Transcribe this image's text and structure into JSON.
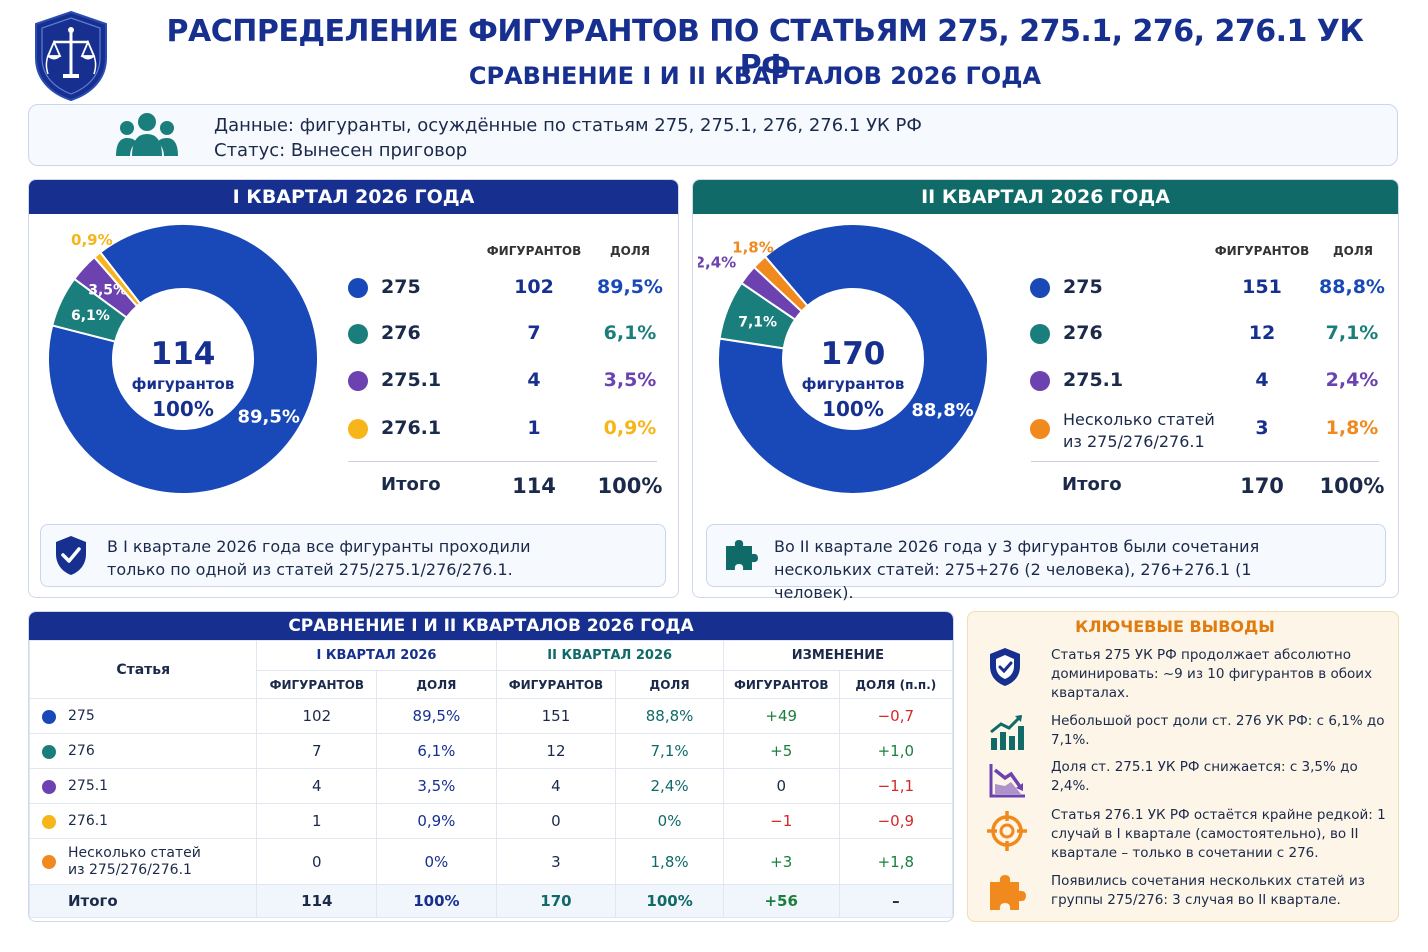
{
  "header": {
    "title": "РАСПРЕДЕЛЕНИЕ ФИГУРАНТОВ ПО СТАТЬЯМ 275, 275.1, 276, 276.1 УК РФ",
    "subtitle": "СРАВНЕНИЕ I И II КВАРТАЛОВ 2026 ГОДА"
  },
  "info": {
    "line1": "Данные: фигуранты, осуждённые по статьям 275, 275.1, 276, 276.1 УК РФ",
    "line2": "Статус: Вынесен приговор"
  },
  "colors": {
    "blue": "#1948b8",
    "teal": "#1a7f7c",
    "purple": "#6b42b0",
    "yellow": "#f6b519",
    "orange": "#f08a1e",
    "navy": "#17308f",
    "darkteal": "#0f6a68"
  },
  "q1": {
    "header": "I КВАРТАЛ 2026 ГОДА",
    "center_number": "114",
    "center_label": "фигурантов",
    "center_pct": "100%",
    "col_count": "ФИГУРАНТОВ",
    "col_share": "ДОЛЯ",
    "rows": [
      {
        "name": "275",
        "count": "102",
        "share": "89,5%"
      },
      {
        "name": "276",
        "count": "7",
        "share": "6,1%"
      },
      {
        "name": "275.1",
        "count": "4",
        "share": "3,5%"
      },
      {
        "name": "276.1",
        "count": "1",
        "share": "0,9%"
      }
    ],
    "total_label": "Итого",
    "total_count": "114",
    "total_share": "100%",
    "note": "В I квартале 2026 года все фигуранты проходили только по одной из статей 275/275.1/276/276.1."
  },
  "q2": {
    "header": "II КВАРТАЛ 2026 ГОДА",
    "center_number": "170",
    "center_label": "фигурантов",
    "center_pct": "100%",
    "col_count": "ФИГУРАНТОВ",
    "col_share": "ДОЛЯ",
    "rows": [
      {
        "name": "275",
        "count": "151",
        "share": "88,8%"
      },
      {
        "name": "276",
        "count": "12",
        "share": "7,1%"
      },
      {
        "name": "275.1",
        "count": "4",
        "share": "2,4%"
      },
      {
        "name": "Несколько статей из 275/276/276.1",
        "count": "3",
        "share": "1,8%"
      }
    ],
    "total_label": "Итого",
    "total_count": "170",
    "total_share": "100%",
    "note": "Во II квартале 2026 года у 3 фигурантов были сочетания нескольких статей: 275+276 (2 человека), 276+276.1 (1 человек)."
  },
  "chart_data": [
    {
      "type": "pie",
      "title": "I КВАРТАЛ 2026 ГОДА",
      "categories": [
        "275",
        "276",
        "275.1",
        "276.1"
      ],
      "values": [
        89.5,
        6.1,
        3.5,
        0.9
      ],
      "counts": [
        102,
        7,
        4,
        1
      ],
      "labels": [
        "89,5%",
        "6,1%",
        "3,5%",
        "0,9%"
      ],
      "colors": [
        "#1948b8",
        "#1a7f7c",
        "#6b42b0",
        "#f6b519"
      ]
    },
    {
      "type": "pie",
      "title": "II КВАРТАЛ 2026 ГОДА",
      "categories": [
        "275",
        "276",
        "275.1",
        "Несколько статей из 275/276/276.1"
      ],
      "values": [
        88.8,
        7.1,
        2.4,
        1.8
      ],
      "counts": [
        151,
        12,
        4,
        3
      ],
      "labels": [
        "88,8%",
        "7,1%",
        "2,4%",
        "1,8%"
      ],
      "colors": [
        "#1948b8",
        "#1a7f7c",
        "#6b42b0",
        "#f08a1e"
      ]
    }
  ],
  "comparison": {
    "header": "СРАВНЕНИЕ I И II КВАРТАЛОВ 2026 ГОДА",
    "col_article": "Статья",
    "group_q1": "I КВАРТАЛ 2026",
    "group_q2": "II КВАРТАЛ 2026",
    "group_change": "ИЗМЕНЕНИЕ",
    "sub_count": "ФИГУРАНТОВ",
    "sub_share": "ДОЛЯ",
    "sub_share_pp": "ДОЛЯ (п.п.)",
    "rows": [
      {
        "name": "275",
        "dot": "#1948b8",
        "q1c": "102",
        "q1s": "89,5%",
        "q2c": "151",
        "q2s": "88,8%",
        "dc": "+49",
        "ds": "−0,7"
      },
      {
        "name": "276",
        "dot": "#1a7f7c",
        "q1c": "7",
        "q1s": "6,1%",
        "q2c": "12",
        "q2s": "7,1%",
        "dc": "+5",
        "ds": "+1,0"
      },
      {
        "name": "275.1",
        "dot": "#6b42b0",
        "q1c": "4",
        "q1s": "3,5%",
        "q2c": "4",
        "q2s": "2,4%",
        "dc": "0",
        "ds": "−1,1"
      },
      {
        "name": "276.1",
        "dot": "#f6b519",
        "q1c": "1",
        "q1s": "0,9%",
        "q2c": "0",
        "q2s": "0%",
        "dc": "−1",
        "ds": "−0,9"
      },
      {
        "name": "Несколько статей из 275/276/276.1",
        "dot": "#f08a1e",
        "q1c": "0",
        "q1s": "0%",
        "q2c": "3",
        "q2s": "1,8%",
        "dc": "+3",
        "ds": "+1,8"
      }
    ],
    "total": {
      "name": "Итого",
      "q1c": "114",
      "q1s": "100%",
      "q2c": "170",
      "q2s": "100%",
      "dc": "+56",
      "ds": "–"
    }
  },
  "conclusions": {
    "header": "КЛЮЧЕВЫЕ ВЫВОДЫ",
    "items": [
      {
        "icon": "shield-icon",
        "text": "Статья 275 УК РФ продолжает абсолютно доминировать: ~9 из 10 фигурантов в обоих кварталах."
      },
      {
        "icon": "growth-chart-icon",
        "text": "Небольшой рост доли ст. 276 УК РФ: с 6,1% до 7,1%."
      },
      {
        "icon": "decline-chart-icon",
        "text": "Доля ст. 275.1 УК РФ снижается: с 3,5% до 2,4%."
      },
      {
        "icon": "target-icon",
        "text": "Статья 276.1 УК РФ остаётся крайне редкой: 1 случай в I квартале (самостоятельно), во II квартале – только в сочетании с 276."
      },
      {
        "icon": "puzzle-icon",
        "text": "Появились сочетания нескольких статей из группы 275/276: 3 случая во II квартале."
      }
    ]
  }
}
